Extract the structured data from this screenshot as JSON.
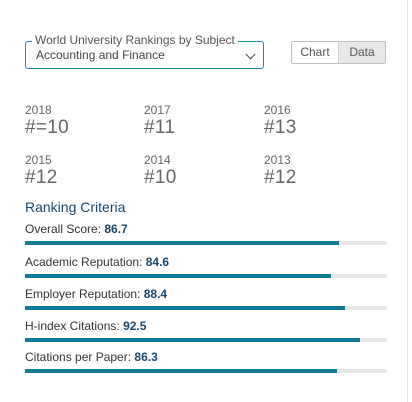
{
  "subject_selector": {
    "legend": "World University Rankings by Subject",
    "value": "Accounting and Finance"
  },
  "view_toggle": {
    "chart_label": "Chart",
    "data_label": "Data",
    "selected": "Data"
  },
  "ranks": [
    {
      "year": "2018",
      "rank": "#=10"
    },
    {
      "year": "2017",
      "rank": "#11"
    },
    {
      "year": "2016",
      "rank": "#13"
    },
    {
      "year": "2015",
      "rank": "#12"
    },
    {
      "year": "2014",
      "rank": "#10"
    },
    {
      "year": "2013",
      "rank": "#12"
    }
  ],
  "criteria_heading": "Ranking Criteria",
  "criteria": [
    {
      "label": "Overall Score:",
      "score": "86.7",
      "fraction": 0.867
    },
    {
      "label": "Academic Reputation:",
      "score": "84.6",
      "fraction": 0.846
    },
    {
      "label": "Employer Reputation:",
      "score": "88.4",
      "fraction": 0.884
    },
    {
      "label": "H-index Citations:",
      "score": "92.5",
      "fraction": 0.925
    },
    {
      "label": "Citations per Paper:",
      "score": "86.3",
      "fraction": 0.863
    }
  ],
  "colors": {
    "accent": "#127a96",
    "heading": "#19476b",
    "track": "#e6e6e6"
  }
}
